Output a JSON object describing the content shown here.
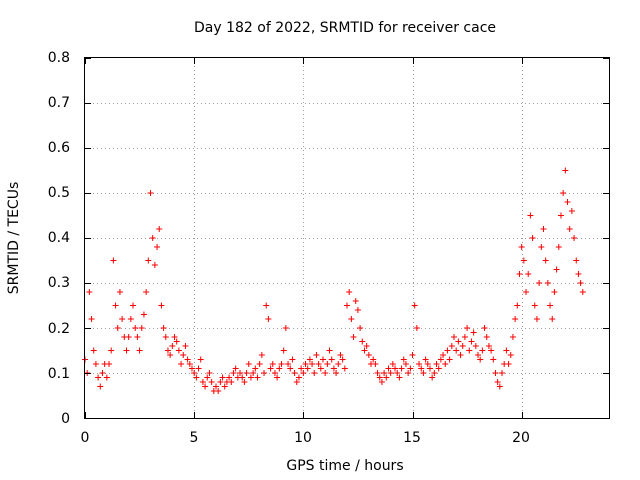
{
  "chart_data": {
    "type": "scatter",
    "title": "Day 182 of 2022, SRMTID for receiver cace",
    "xlabel": "GPS time / hours",
    "ylabel": "SRMTID / TECUs",
    "xlim": [
      0,
      24
    ],
    "ylim": [
      0,
      0.8
    ],
    "xticks": [
      0,
      5,
      10,
      15,
      20
    ],
    "xtick_labels": [
      "0",
      "5",
      "10",
      "15",
      "20"
    ],
    "yticks": [
      0,
      0.1,
      0.2,
      0.3,
      0.4,
      0.5,
      0.6,
      0.7,
      0.8
    ],
    "ytick_labels": [
      "0",
      "0.1",
      "0.2",
      "0.3",
      "0.4",
      "0.5",
      "0.6",
      "0.7",
      "0.8"
    ],
    "grid": true,
    "marker": "+",
    "colors": {
      "series": "#ff0000",
      "grid": "#a0a0a0",
      "axis": "#000000"
    },
    "series": [
      {
        "name": "SRMTID",
        "sampling_interval_hours": 0.1,
        "x_start": 0,
        "values": [
          0.13,
          0.1,
          0.28,
          0.22,
          0.15,
          0.12,
          0.09,
          0.07,
          0.1,
          0.12,
          0.09,
          0.12,
          0.15,
          0.35,
          0.25,
          0.2,
          0.28,
          0.22,
          0.18,
          0.15,
          0.18,
          0.22,
          0.25,
          0.2,
          0.18,
          0.15,
          0.2,
          0.23,
          0.28,
          0.35,
          0.5,
          0.4,
          0.34,
          0.38,
          0.42,
          0.25,
          0.2,
          0.18,
          0.15,
          0.14,
          0.16,
          0.18,
          0.17,
          0.15,
          0.12,
          0.14,
          0.16,
          0.13,
          0.12,
          0.11,
          0.1,
          0.09,
          0.11,
          0.13,
          0.08,
          0.07,
          0.09,
          0.1,
          0.08,
          0.06,
          0.07,
          0.06,
          0.08,
          0.09,
          0.07,
          0.08,
          0.09,
          0.08,
          0.1,
          0.11,
          0.09,
          0.1,
          0.09,
          0.08,
          0.1,
          0.12,
          0.09,
          0.1,
          0.11,
          0.09,
          0.12,
          0.14,
          0.1,
          0.25,
          0.22,
          0.11,
          0.12,
          0.1,
          0.09,
          0.11,
          0.12,
          0.15,
          0.2,
          0.12,
          0.11,
          0.13,
          0.1,
          0.08,
          0.09,
          0.11,
          0.1,
          0.12,
          0.11,
          0.13,
          0.12,
          0.1,
          0.14,
          0.12,
          0.11,
          0.13,
          0.1,
          0.12,
          0.15,
          0.13,
          0.11,
          0.1,
          0.12,
          0.14,
          0.13,
          0.11,
          0.25,
          0.28,
          0.22,
          0.18,
          0.26,
          0.24,
          0.2,
          0.17,
          0.15,
          0.16,
          0.14,
          0.12,
          0.13,
          0.12,
          0.1,
          0.09,
          0.08,
          0.1,
          0.09,
          0.11,
          0.1,
          0.12,
          0.11,
          0.1,
          0.09,
          0.11,
          0.13,
          0.12,
          0.1,
          0.11,
          0.14,
          0.25,
          0.2,
          0.12,
          0.11,
          0.1,
          0.13,
          0.12,
          0.11,
          0.09,
          0.1,
          0.12,
          0.11,
          0.13,
          0.14,
          0.12,
          0.15,
          0.13,
          0.16,
          0.18,
          0.15,
          0.17,
          0.14,
          0.16,
          0.18,
          0.2,
          0.15,
          0.17,
          0.19,
          0.16,
          0.14,
          0.13,
          0.15,
          0.2,
          0.18,
          0.16,
          0.15,
          0.13,
          0.1,
          0.08,
          0.07,
          0.1,
          0.12,
          0.15,
          0.12,
          0.14,
          0.18,
          0.22,
          0.25,
          0.32,
          0.38,
          0.35,
          0.28,
          0.32,
          0.45,
          0.4,
          0.25,
          0.22,
          0.3,
          0.38,
          0.42,
          0.35,
          0.3,
          0.25,
          0.22,
          0.28,
          0.33,
          0.38,
          0.45,
          0.5,
          0.55,
          0.48,
          0.42,
          0.46,
          0.4,
          0.35,
          0.32,
          0.3,
          0.28
        ]
      }
    ]
  }
}
